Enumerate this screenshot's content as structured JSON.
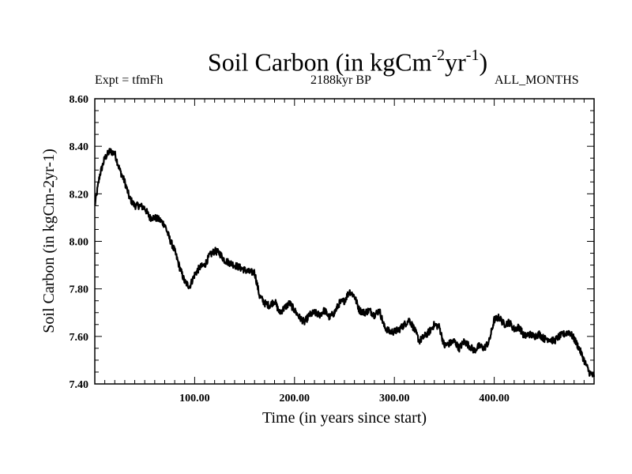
{
  "chart_data": {
    "type": "line",
    "title": "Soil Carbon (in kgCm",
    "title_sup1": "-2",
    "title_mid": "yr",
    "title_sup2": "-1",
    "title_end": ")",
    "subtitle_left": "Expt = tfmFh",
    "subtitle_center": "2188kyr BP",
    "subtitle_right": "ALL_MONTHS",
    "xlabel": "Time (in years since start)",
    "ylabel": "Soil Carbon (in kgCm-2yr-1)",
    "xlim": [
      0,
      500
    ],
    "ylim": [
      7.4,
      8.6
    ],
    "x_ticks": [
      100,
      200,
      300,
      400
    ],
    "x_tick_labels": [
      "100.00",
      "200.00",
      "300.00",
      "400.00"
    ],
    "y_ticks": [
      7.4,
      7.6,
      7.8,
      8.0,
      8.2,
      8.4,
      8.6
    ],
    "y_tick_labels": [
      "7.40",
      "7.60",
      "7.80",
      "8.00",
      "8.20",
      "8.40",
      "8.60"
    ],
    "line_color": "#000000",
    "series": [
      {
        "name": "Soil Carbon",
        "x": [
          0,
          5,
          10,
          15,
          20,
          25,
          30,
          35,
          40,
          45,
          50,
          55,
          60,
          65,
          70,
          75,
          80,
          85,
          90,
          95,
          100,
          105,
          110,
          115,
          120,
          125,
          130,
          135,
          140,
          145,
          150,
          155,
          160,
          165,
          170,
          175,
          180,
          185,
          190,
          195,
          200,
          205,
          210,
          215,
          220,
          225,
          230,
          235,
          240,
          245,
          250,
          255,
          260,
          265,
          270,
          275,
          280,
          285,
          290,
          295,
          300,
          305,
          310,
          315,
          320,
          325,
          330,
          335,
          340,
          345,
          350,
          355,
          360,
          365,
          370,
          375,
          380,
          385,
          390,
          395,
          400,
          405,
          410,
          415,
          420,
          425,
          430,
          435,
          440,
          445,
          450,
          455,
          460,
          465,
          470,
          475,
          480,
          485,
          490,
          495,
          500
        ],
        "values": [
          8.15,
          8.28,
          8.35,
          8.38,
          8.37,
          8.3,
          8.25,
          8.18,
          8.15,
          8.15,
          8.14,
          8.1,
          8.1,
          8.09,
          8.07,
          8.01,
          7.96,
          7.89,
          7.83,
          7.81,
          7.86,
          7.89,
          7.9,
          7.94,
          7.96,
          7.95,
          7.92,
          7.91,
          7.9,
          7.89,
          7.88,
          7.87,
          7.87,
          7.77,
          7.74,
          7.73,
          7.75,
          7.7,
          7.72,
          7.74,
          7.71,
          7.68,
          7.66,
          7.69,
          7.7,
          7.69,
          7.71,
          7.68,
          7.7,
          7.74,
          7.75,
          7.79,
          7.77,
          7.71,
          7.7,
          7.71,
          7.69,
          7.71,
          7.64,
          7.62,
          7.62,
          7.63,
          7.65,
          7.67,
          7.63,
          7.58,
          7.6,
          7.62,
          7.65,
          7.64,
          7.56,
          7.57,
          7.58,
          7.55,
          7.58,
          7.56,
          7.54,
          7.56,
          7.55,
          7.58,
          7.67,
          7.68,
          7.65,
          7.66,
          7.63,
          7.64,
          7.6,
          7.61,
          7.6,
          7.61,
          7.59,
          7.59,
          7.58,
          7.6,
          7.61,
          7.62,
          7.59,
          7.55,
          7.5,
          7.45,
          7.43
        ]
      }
    ]
  }
}
